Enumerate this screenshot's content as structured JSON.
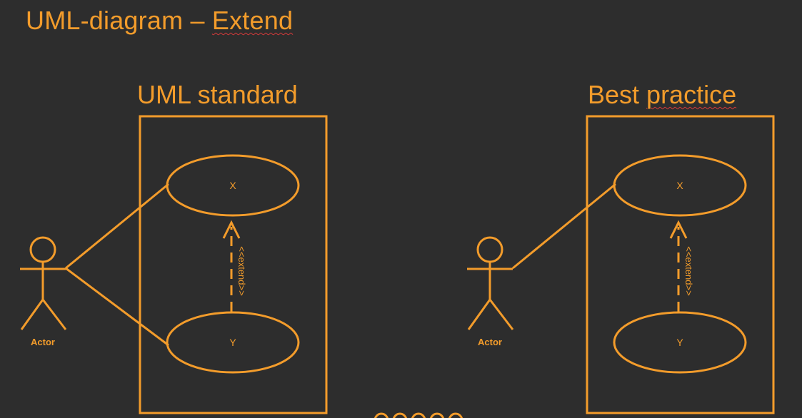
{
  "title": {
    "prefix": "UML-diagram – ",
    "emphasis": "Extend"
  },
  "panels": [
    {
      "heading_plain": "UML standard",
      "heading_prefix": "",
      "heading_emphasis": "",
      "use_case_top": "X",
      "use_case_bottom": "Y",
      "actor_label": "Actor",
      "relation_label": "<<extend>>"
    },
    {
      "heading_prefix": "Best ",
      "heading_emphasis": "practice",
      "use_case_top": "X",
      "use_case_bottom": "Y",
      "actor_label": "Actor",
      "relation_label": "<<extend>>"
    }
  ],
  "colors": {
    "stroke": "#f39c2b",
    "background": "#2d2d2d",
    "spellcheck": "#d43a3a"
  }
}
